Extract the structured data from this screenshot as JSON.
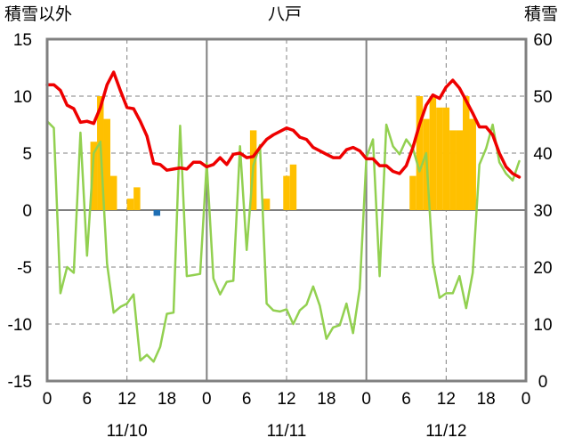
{
  "chart_data": {
    "type": "combo",
    "title": "八戸",
    "left_axis_label": "積雪以外",
    "right_axis_label": "積雪",
    "left_ylim": [
      -15,
      15
    ],
    "right_ylim": [
      0,
      60
    ],
    "left_ticks": [
      "15",
      "10",
      "5",
      "0",
      "-5",
      "-10",
      "-15"
    ],
    "right_ticks": [
      "60",
      "50",
      "40",
      "30",
      "20",
      "10",
      "0"
    ],
    "x_hour_ticks": [
      "0",
      "6",
      "12",
      "18",
      "0",
      "6",
      "12",
      "18",
      "0",
      "6",
      "12",
      "18",
      "0"
    ],
    "date_labels": [
      "11/10",
      "11/11",
      "11/12"
    ],
    "x_range_hours": [
      0,
      72
    ],
    "colors": {
      "temperature": "#ee0000",
      "secondary_line": "#92d050",
      "bars": "#ffc000",
      "negative_bar": "#1f6fb4",
      "baseline": "#7030a0",
      "frame": "#808080",
      "grid": "#808080"
    },
    "bars": {
      "name": "hourly value (left axis)",
      "x": [
        7,
        8,
        9,
        10,
        12.5,
        13.5,
        16.5,
        31,
        33,
        36,
        37,
        55,
        56,
        57,
        58,
        59,
        60,
        61,
        62,
        63,
        64
      ],
      "values": [
        6,
        10,
        8,
        3,
        1,
        2,
        -0.5,
        7,
        1,
        3,
        4,
        3,
        10,
        8,
        10,
        9,
        9,
        7,
        7,
        10,
        8
      ]
    },
    "series": [
      {
        "name": "temperature",
        "axis": "left",
        "x": [
          0,
          1,
          2,
          3,
          4,
          5,
          6,
          7,
          8,
          9,
          10,
          11,
          12,
          13,
          14,
          15,
          16,
          17,
          18,
          19,
          20,
          21,
          22,
          23,
          24,
          25,
          26,
          27,
          28,
          29,
          30,
          31,
          32,
          33,
          34,
          35,
          36,
          37,
          38,
          39,
          40,
          41,
          42,
          43,
          44,
          45,
          46,
          47,
          48,
          49,
          50,
          51,
          52,
          53,
          54,
          55,
          56,
          57,
          58,
          59,
          60,
          61,
          62,
          63,
          64,
          65,
          66,
          67,
          68,
          69,
          70,
          71
        ],
        "values": [
          11,
          11,
          10.5,
          9.2,
          8.9,
          7.7,
          7.8,
          7.6,
          9,
          11,
          12.1,
          10.5,
          9,
          8.9,
          7.8,
          6.5,
          4.1,
          4,
          3.5,
          3.6,
          3.7,
          3.6,
          4.2,
          4.2,
          3.8,
          4,
          4.6,
          4,
          4.9,
          5,
          4.6,
          4.7,
          5.5,
          6.2,
          6.6,
          6.9,
          7.2,
          7,
          6.4,
          6.2,
          5.5,
          5.2,
          4.9,
          4.6,
          4.6,
          5.3,
          5.5,
          5.2,
          4.5,
          4.5,
          3.9,
          3.9,
          3.4,
          3.2,
          3.9,
          5.5,
          7.5,
          9.2,
          10.1,
          9.8,
          10.8,
          11.4,
          10.7,
          9.6,
          8.5,
          7.3,
          7.3,
          6.6,
          5,
          3.8,
          3.2,
          2.9
        ]
      },
      {
        "name": "secondary",
        "axis": "left",
        "x": [
          0,
          1,
          2,
          3,
          4,
          5,
          6,
          7,
          8,
          9,
          10,
          11,
          12,
          13,
          14,
          15,
          16,
          17,
          18,
          19,
          20,
          21,
          22,
          23,
          24,
          25,
          26,
          27,
          28,
          29,
          30,
          31,
          32,
          33,
          34,
          35,
          36,
          37,
          38,
          39,
          40,
          41,
          42,
          43,
          44,
          45,
          46,
          47,
          48,
          49,
          50,
          51,
          52,
          53,
          54,
          55,
          56,
          57,
          58,
          59,
          60,
          61,
          62,
          63,
          64,
          65,
          66,
          67,
          68,
          69,
          70,
          71
        ],
        "values": [
          7.8,
          7.2,
          -7.3,
          -5,
          -5.5,
          6.8,
          -4,
          5,
          6,
          -4.7,
          -9,
          -8.5,
          -8.2,
          -7.4,
          -13.2,
          -12.7,
          -13.3,
          -12,
          -9.1,
          -9,
          7.4,
          -5.8,
          -5.7,
          -5.6,
          4.1,
          -6,
          -7.4,
          -6.3,
          -6.2,
          5.6,
          -3.5,
          3.9,
          5.7,
          -8.2,
          -8.8,
          -8.9,
          -8.7,
          -10,
          -8.8,
          -8.3,
          -6.7,
          -8.4,
          -11.3,
          -10.3,
          -10.1,
          -8.2,
          -10.8,
          -6.9,
          4.6,
          6.2,
          -5.8,
          7.5,
          5.6,
          4.9,
          6.2,
          5.4,
          3.4,
          5,
          -4.6,
          -7.7,
          -7.3,
          -7.3,
          -5.8,
          -8.6,
          -5.5,
          4,
          5.4,
          7.5,
          4.2,
          3.2,
          2.6,
          4.3
        ]
      },
      {
        "name": "baseline",
        "axis": "right",
        "x": [
          0,
          72
        ],
        "values": [
          0,
          0
        ]
      }
    ]
  }
}
